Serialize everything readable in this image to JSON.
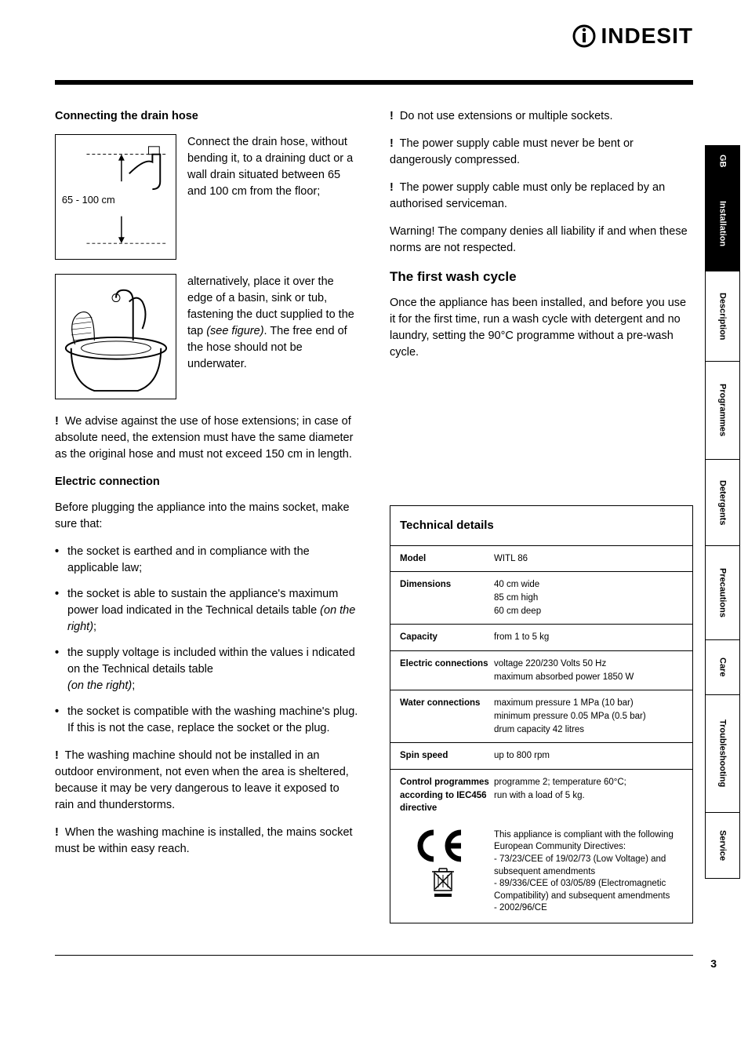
{
  "brand": "INDESIT",
  "page_number": "3",
  "side_tabs": {
    "gb": "GB",
    "items": [
      "Installation",
      "Description",
      "Programmes",
      "Detergents",
      "Precautions",
      "Care",
      "Troubleshooting",
      "Service"
    ],
    "active_index": 0
  },
  "left": {
    "h_drain": "Connecting the drain hose",
    "drain_img_label": "65 - 100 cm",
    "drain_text": "Connect the drain hose, without bending it, to a draining duct or a wall drain situated between 65 and 100 cm from the floor;",
    "basin_text_a": "alternatively, place it over the edge of a basin, sink or tub, fastening the duct supplied to the tap ",
    "basin_text_b": "(see figure)",
    "basin_text_c": ". The free end of the hose should not be underwater.",
    "warn_hose": " We advise against the use of hose extensions; in case of absolute need, the extension must have the same diameter as the original hose and must not exceed 150 cm in length.",
    "h_electric": "Electric connection",
    "electric_intro": "Before plugging the appliance into the mains socket, make sure that:",
    "bullets": {
      "b1": "the socket is earthed and in compliance with the applicable law;",
      "b2a": "the socket is able to sustain the appliance's maximum power load indicated in the Technical details table ",
      "b2b": "(on the right)",
      "b2c": ";",
      "b3a": "the supply voltage is included within the values i ndicated on the Technical details table",
      "b3b": "(on the right)",
      "b3c": ";",
      "b4": "the socket is compatible with the washing machine's plug. If this is not the case, replace the socket or the plug."
    },
    "warn_outdoor": " The washing machine should not be installed in an outdoor environment, not even when the area is sheltered, because it may be very dangerous to leave it exposed to rain and thunderstorms.",
    "warn_reach": " When the washing machine is installed, the mains socket must be within easy reach."
  },
  "right": {
    "warn_ext": " Do not use extensions or multiple sockets.",
    "warn_cable_bend": " The  power supply cable must never be bent or dangerously compressed.",
    "warn_cable_replace": " The power supply cable must only be replaced by an authorised serviceman.",
    "warn_liability": "Warning! The company denies all liability if and when these norms are not respected.",
    "h_first": "The first wash cycle",
    "first_text": "Once the appliance has been installed, and before you use it for the first time, run a wash cycle with detergent and no laundry, setting the 90°C programme without a pre-wash cycle."
  },
  "tech": {
    "title": "Technical details",
    "rows": [
      {
        "label": "Model",
        "value": "WITL 86"
      },
      {
        "label": "Dimensions",
        "value": "40 cm wide\n85 cm high\n60 cm deep"
      },
      {
        "label": "Capacity",
        "value": "from 1 to 5 kg"
      },
      {
        "label": "Electric connections",
        "value": "voltage 220/230 Volts 50 Hz\nmaximum absorbed power 1850 W"
      },
      {
        "label": "Water connections",
        "value": "maximum pressure 1 MPa (10 bar)\nminimum pressure 0.05 MPa (0.5 bar)\ndrum capacity 42 litres"
      },
      {
        "label": "Spin speed",
        "value": "up to 800 rpm"
      },
      {
        "label": "Control programmes according to IEC456 directive",
        "value": "programme 2; temperature 60°C;\nrun with a load of 5 kg."
      }
    ],
    "ce_text": "This appliance is compliant with the following European Community Directives:\n- 73/23/CEE of 19/02/73 (Low Voltage) and subsequent amendments\n- 89/336/CEE of 03/05/89 (Electromagnetic Compatibility) and subsequent amendments\n- 2002/96/CE"
  }
}
